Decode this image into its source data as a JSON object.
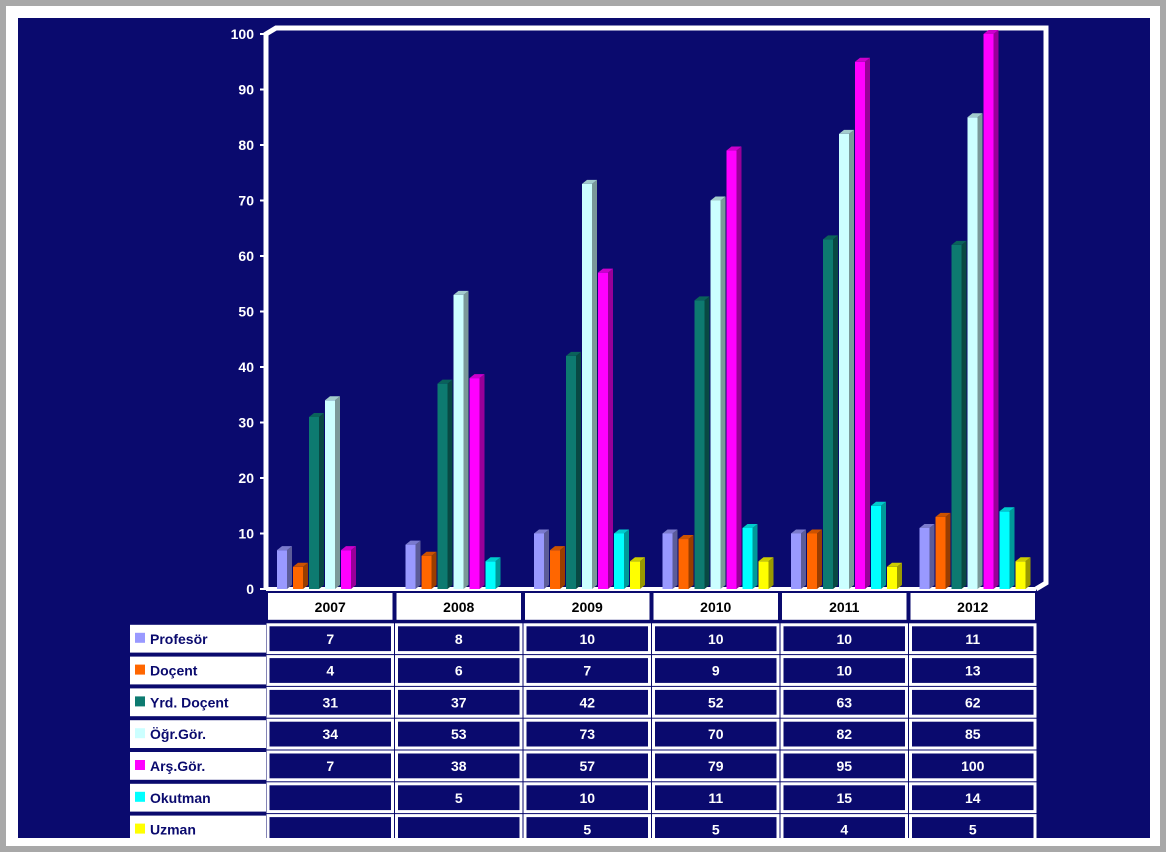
{
  "chart_data": {
    "type": "bar",
    "categories": [
      "2007",
      "2008",
      "2009",
      "2010",
      "2011",
      "2012"
    ],
    "series": [
      {
        "name": "Profesör",
        "color": "#9999ff",
        "values": [
          7,
          8,
          10,
          10,
          10,
          11
        ]
      },
      {
        "name": "Doçent",
        "color": "#ff6600",
        "values": [
          4,
          6,
          7,
          9,
          10,
          13
        ]
      },
      {
        "name": "Yrd. Doçent",
        "color": "#0d7a70",
        "values": [
          31,
          37,
          42,
          52,
          63,
          62
        ]
      },
      {
        "name": "Öğr.Gör.",
        "color": "#ccffff",
        "values": [
          34,
          53,
          73,
          70,
          82,
          85
        ]
      },
      {
        "name": "Arş.Gör.",
        "color": "#ff00ff",
        "values": [
          7,
          38,
          57,
          79,
          95,
          100
        ]
      },
      {
        "name": "Okutman",
        "color": "#00ffff",
        "values": [
          null,
          5,
          10,
          11,
          15,
          14
        ]
      },
      {
        "name": "Uzman",
        "color": "#ffff00",
        "values": [
          null,
          null,
          5,
          5,
          4,
          5
        ]
      }
    ],
    "ylim": [
      0,
      100
    ],
    "yticks": [
      "0",
      "10",
      "20",
      "30",
      "40",
      "50",
      "60",
      "70",
      "80",
      "90",
      "100"
    ],
    "grid": false,
    "legend": "data-table-below",
    "background": "#0a0a6e"
  }
}
